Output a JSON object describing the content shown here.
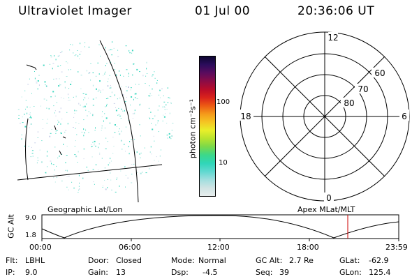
{
  "header": {
    "instrument": "Ultraviolet Imager",
    "date": "01 Jul 00",
    "time": "20:36:06 UT"
  },
  "colorbar": {
    "unit_label": "photon cm⁻²s⁻¹",
    "tick_100": "100",
    "tick_10": "10",
    "colors": [
      "#e8eeee",
      "#cfe3e3",
      "#9fdede",
      "#5fd8d0",
      "#2fd6b8",
      "#3cd88a",
      "#7ad94a",
      "#b8e32e",
      "#e9ef2a",
      "#f5c623",
      "#f59a1a",
      "#ec5a14",
      "#d9221c",
      "#b80c2a",
      "#8a0c46",
      "#5a0c5e",
      "#2c0c5c",
      "#0c0630"
    ]
  },
  "left_map": {
    "caption": "Geographic Lat/Lon",
    "speckle_color": "#40d8c0"
  },
  "polar": {
    "caption": "Apex MLat/MLT",
    "mlt_top": "12",
    "mlt_left": "18",
    "mlt_right": "6",
    "mlt_bottom": "0",
    "lat_60": "60",
    "lat_70": "70",
    "lat_80": "80"
  },
  "altitude": {
    "axis_label": "GC Alt",
    "tick_top": "9.0",
    "tick_bottom": "1.8",
    "time_ticks": [
      "00:00",
      "06:00",
      "12:00",
      "18:00",
      "23:59"
    ],
    "marker_color": "#cc0000"
  },
  "status": {
    "filter_label": "Flt:",
    "filter_value": "LBHL",
    "ip_label": "IP:",
    "ip_value": "9.0",
    "door_label": "Door:",
    "door_value": "Closed",
    "gain_label": "Gain:",
    "gain_value": "13",
    "mode_label": "Mode:",
    "mode_value": "Normal",
    "dsp_label": "Dsp:",
    "dsp_value": "-4.5",
    "gcalt_label": "GC Alt:",
    "gcalt_value": "2.7 Re",
    "seq_label": "Seq:",
    "seq_value": "39",
    "glat_label": "GLat:",
    "glat_value": "-62.9",
    "glon_label": "GLon:",
    "glon_value": "125.4"
  }
}
